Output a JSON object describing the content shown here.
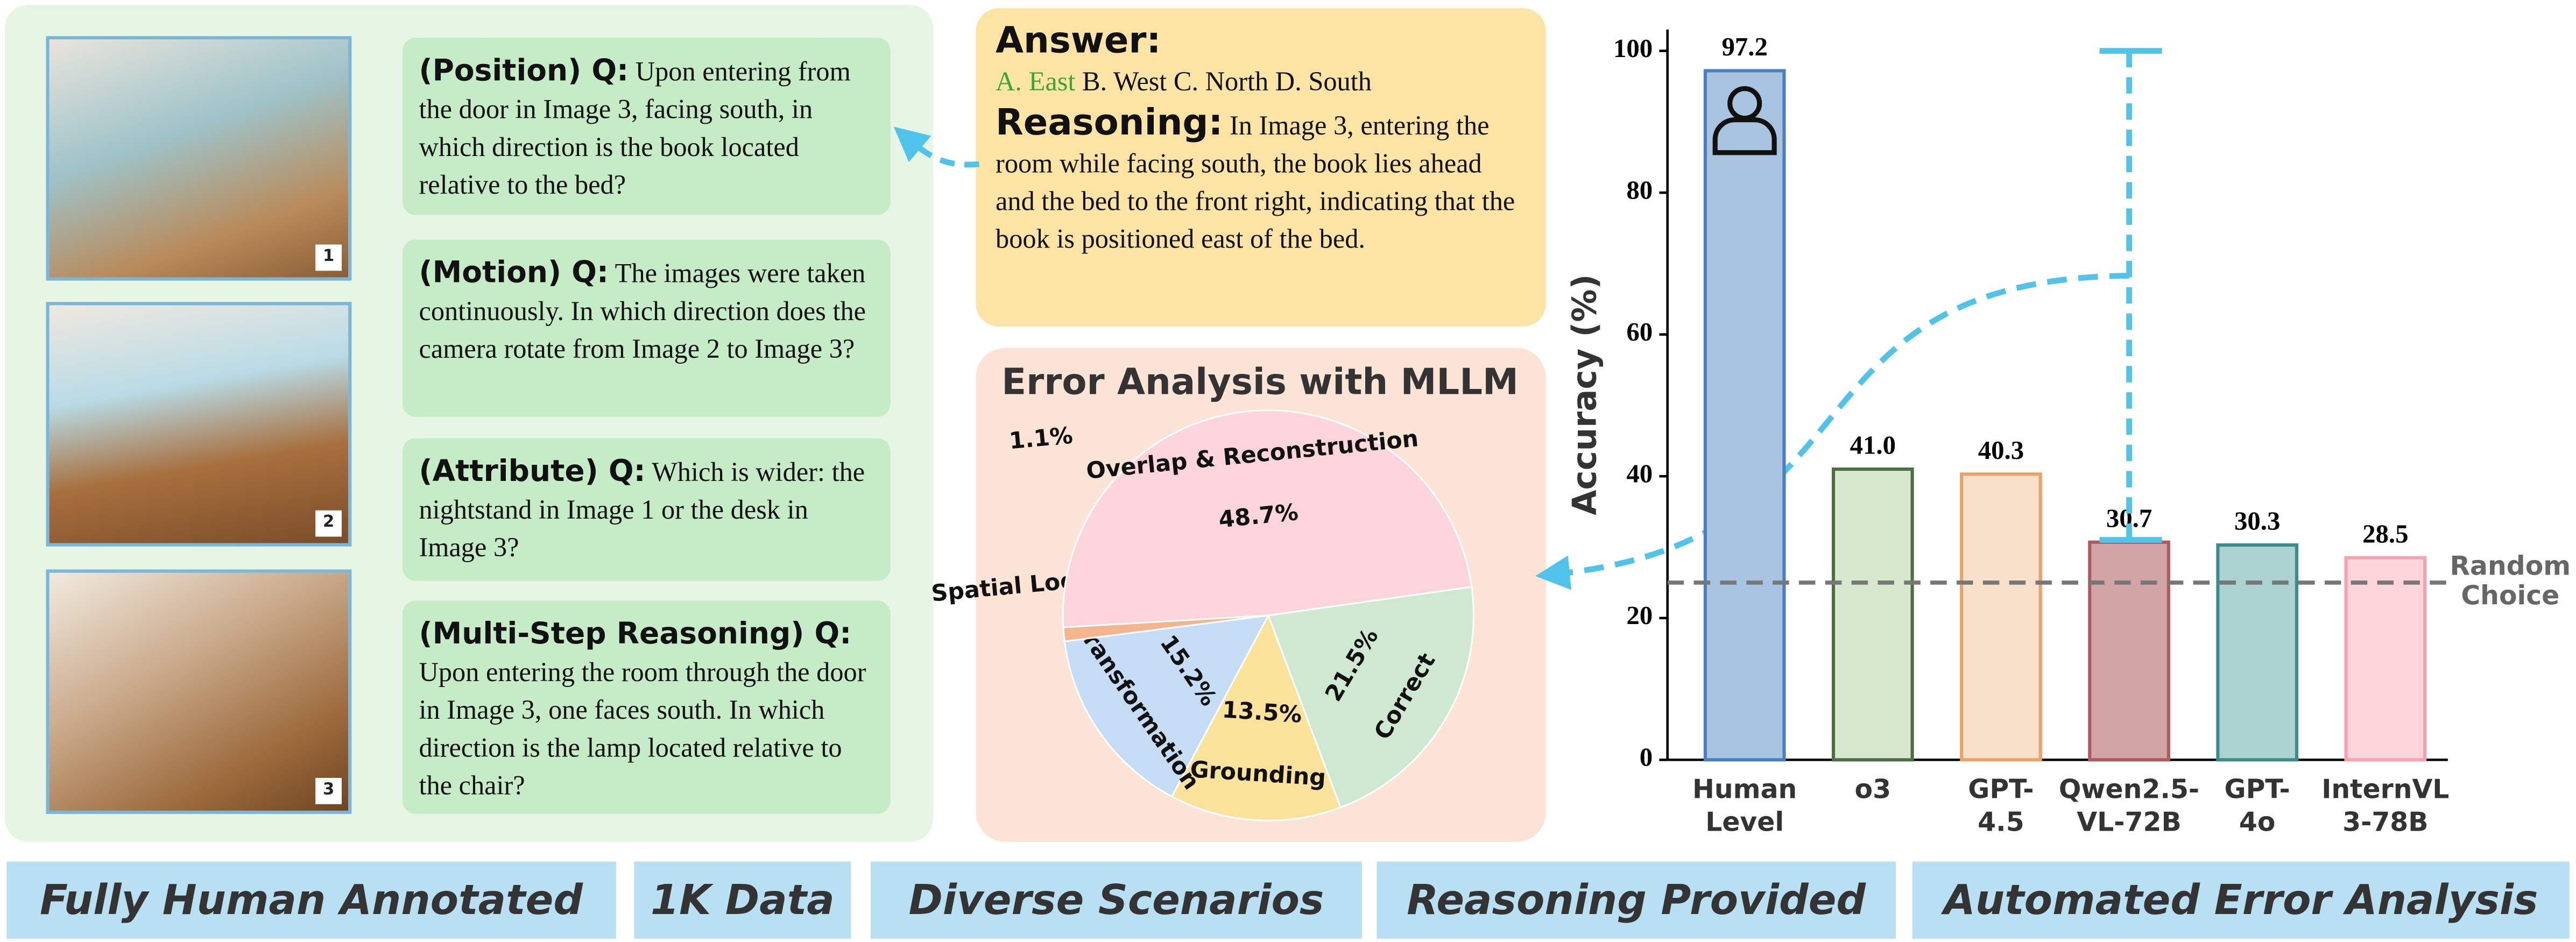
{
  "images": [
    {
      "badge": "1"
    },
    {
      "badge": "2"
    },
    {
      "badge": "3"
    }
  ],
  "questions": [
    {
      "prefix": "(Position) Q:",
      "text": "Upon entering from the door in Image 3, facing south, in which direction is the book located relative to the bed?"
    },
    {
      "prefix": "(Motion) Q:",
      "text": "The images were taken continuously. In which direction does the camera rotate from Image 2 to Image 3?"
    },
    {
      "prefix": "(Attribute) Q:",
      "text": "Which is wider: the nightstand in Image 1 or the desk in Image 3?"
    },
    {
      "prefix": "(Multi-Step Reasoning) Q:",
      "text": "Upon entering the room through the door in Image 3, one faces south. In which direction is the lamp located relative to the chair?"
    }
  ],
  "answer": {
    "heading": "Answer:",
    "correct": "A. East",
    "others": "B. West C. North D. South",
    "reasoning_heading": "Reasoning:",
    "reasoning": "In Image 3, entering the room while facing south, the book lies ahead and the bed to the front right, indicating that the book is positioned east of the bed."
  },
  "banners": [
    "Fully Human Annotated",
    "1K Data",
    "Diverse Scenarios",
    "Reasoning Provided",
    "Automated Error Analysis"
  ],
  "chart_data": [
    {
      "type": "bar",
      "y_label": "Accuracy (%)",
      "categories": [
        [
          "Human",
          "Level"
        ],
        [
          "o3"
        ],
        [
          "GPT-",
          "4.5"
        ],
        [
          "Qwen2.5-",
          "VL-72B"
        ],
        [
          "GPT-",
          "4o"
        ],
        [
          "InternVL",
          "3-78B"
        ]
      ],
      "values": [
        97.2,
        41.0,
        40.3,
        30.7,
        30.3,
        28.5
      ],
      "value_labels": [
        "97.2",
        "41.0",
        "40.3",
        "30.7",
        "30.3",
        "28.5"
      ],
      "colors": [
        "#a9c4e0",
        "#d7e8cf",
        "#f9e0ca",
        "#d3a4a6",
        "#abd2d1",
        "#fcd4d9"
      ],
      "edge_colors": [
        "#4a7fc1",
        "#4e6e45",
        "#e9a267",
        "#b0595f",
        "#3c8c8a",
        "#f5a3ad"
      ],
      "ylim": [
        0,
        103
      ],
      "yticks": [
        0,
        20,
        40,
        60,
        80,
        100
      ],
      "reference_line": {
        "value": 25,
        "label": [
          "Random",
          "Choice"
        ]
      }
    },
    {
      "type": "pie",
      "title": "Error Analysis with MLLM",
      "categories": [
        "Correct",
        "Grounding",
        "Transformation",
        "Spatial Logic",
        "Overlap & Reconstruction"
      ],
      "values": [
        21.5,
        13.5,
        15.2,
        1.1,
        48.7
      ],
      "value_labels": [
        "21.5%",
        "13.5%",
        "15.2%",
        "1.1%",
        "48.7%"
      ],
      "colors": [
        "#cfe8d1",
        "#fbe29b",
        "#c5dcf5",
        "#f2b58e",
        "#fcd5dc"
      ]
    }
  ]
}
